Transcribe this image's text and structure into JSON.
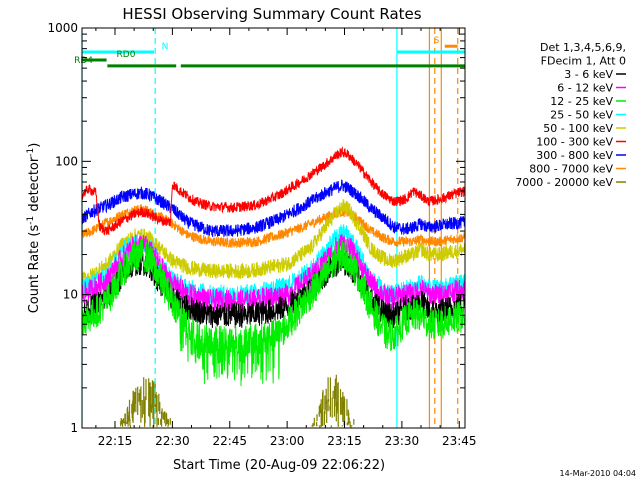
{
  "chart_data": {
    "type": "line",
    "title": "HESSI Observing Summary Count Rates",
    "xlabel": "Start Time (20-Aug-09 22:06:22)",
    "ylabel_main": "Count Rate (s",
    "ylabel_sup1": "-1",
    "ylabel_mid": " detector",
    "ylabel_sup2": "-1",
    "ylabel_end": ")",
    "yscale": "log",
    "ylim": [
      1,
      1000
    ],
    "xlim_minutes": [
      6.37,
      106.5
    ],
    "xticks": [
      {
        "label": "22:15",
        "min": 15
      },
      {
        "label": "22:30",
        "min": 30
      },
      {
        "label": "22:45",
        "min": 45
      },
      {
        "label": "23:00",
        "min": 60
      },
      {
        "label": "23:15",
        "min": 75
      },
      {
        "label": "23:30",
        "min": 90
      },
      {
        "label": "23:45",
        "min": 105
      }
    ],
    "yticks": [
      {
        "label": "1",
        "v": 1
      },
      {
        "label": "10",
        "v": 10
      },
      {
        "label": "100",
        "v": 100
      },
      {
        "label": "1000",
        "v": 1000
      }
    ],
    "legend_header": [
      "Det 1,3,4,5,6,9,",
      "FDecim 1, Att 0"
    ],
    "timestamp": "14-Mar-2010 04:04",
    "grid": false,
    "legend_position": "right",
    "series": [
      {
        "name": "3 - 6 keV",
        "color": "#000000",
        "noise": 0.1,
        "pts": [
          [
            6.4,
            7
          ],
          [
            9,
            8
          ],
          [
            13,
            9.5
          ],
          [
            17,
            14
          ],
          [
            20,
            17
          ],
          [
            22,
            17.5
          ],
          [
            24,
            16.5
          ],
          [
            27,
            12
          ],
          [
            30,
            9.3
          ],
          [
            34,
            8
          ],
          [
            40,
            7
          ],
          [
            50,
            7
          ],
          [
            60,
            8
          ],
          [
            66,
            11
          ],
          [
            70,
            14
          ],
          [
            73,
            17
          ],
          [
            74.5,
            17.5
          ],
          [
            76,
            17
          ],
          [
            79,
            13
          ],
          [
            82,
            9
          ],
          [
            86,
            7
          ],
          [
            88,
            7
          ],
          [
            91,
            8
          ],
          [
            93,
            8
          ],
          [
            95,
            9
          ],
          [
            97,
            7.5
          ],
          [
            100,
            7.5
          ],
          [
            103,
            8
          ],
          [
            106.5,
            8.5
          ]
        ]
      },
      {
        "name": "6 - 12 keV",
        "color": "#ff00ff",
        "noise": 0.09,
        "pts": [
          [
            6.4,
            10
          ],
          [
            9,
            11
          ],
          [
            13,
            13
          ],
          [
            17,
            19
          ],
          [
            20,
            23
          ],
          [
            22,
            24
          ],
          [
            24,
            22
          ],
          [
            27,
            16
          ],
          [
            30,
            12
          ],
          [
            34,
            10
          ],
          [
            40,
            9
          ],
          [
            50,
            9
          ],
          [
            60,
            10
          ],
          [
            66,
            13.5
          ],
          [
            70,
            18
          ],
          [
            73,
            23
          ],
          [
            74.5,
            24
          ],
          [
            76,
            23
          ],
          [
            79,
            17
          ],
          [
            82,
            12
          ],
          [
            86,
            9.5
          ],
          [
            88,
            9.5
          ],
          [
            91,
            10
          ],
          [
            93,
            10
          ],
          [
            95,
            11
          ],
          [
            97,
            10
          ],
          [
            100,
            10
          ],
          [
            103,
            10.5
          ],
          [
            106.5,
            11
          ]
        ]
      },
      {
        "name": "12 - 25 keV",
        "color": "#00ee00",
        "noise": 0.13,
        "pts": [
          [
            6.4,
            6.5
          ],
          [
            9,
            7
          ],
          [
            13,
            9
          ],
          [
            17,
            15
          ],
          [
            20,
            19
          ],
          [
            22,
            20
          ],
          [
            24,
            18.5
          ],
          [
            27,
            13
          ],
          [
            30,
            9
          ],
          [
            33,
            6.5
          ],
          [
            36,
            5
          ],
          [
            40,
            4.5
          ],
          [
            50,
            4.5
          ],
          [
            58,
            5
          ],
          [
            62,
            7
          ],
          [
            66,
            10
          ],
          [
            70,
            14
          ],
          [
            73,
            19
          ],
          [
            74.5,
            20
          ],
          [
            76,
            19
          ],
          [
            79,
            13
          ],
          [
            82,
            8
          ],
          [
            86,
            5
          ],
          [
            88,
            5
          ],
          [
            91,
            6.5
          ],
          [
            93,
            7
          ],
          [
            95,
            7
          ],
          [
            97,
            6
          ],
          [
            100,
            6
          ],
          [
            103,
            6.5
          ],
          [
            106.5,
            7
          ]
        ]
      },
      {
        "name": "25 - 50 keV",
        "color": "#00ffff",
        "noise": 0.08,
        "pts": [
          [
            6.4,
            11
          ],
          [
            9,
            12
          ],
          [
            13,
            14
          ],
          [
            17,
            21
          ],
          [
            20,
            24
          ],
          [
            22,
            25
          ],
          [
            24,
            23
          ],
          [
            27,
            17
          ],
          [
            30,
            13
          ],
          [
            34,
            11
          ],
          [
            40,
            10
          ],
          [
            50,
            10
          ],
          [
            60,
            11.5
          ],
          [
            66,
            15
          ],
          [
            70,
            21
          ],
          [
            73,
            27
          ],
          [
            74.5,
            29
          ],
          [
            76,
            28
          ],
          [
            79,
            20
          ],
          [
            82,
            13
          ],
          [
            86,
            10
          ],
          [
            88,
            10
          ],
          [
            91,
            11
          ],
          [
            93,
            11
          ],
          [
            95,
            12
          ],
          [
            97,
            11
          ],
          [
            100,
            11
          ],
          [
            103,
            11.5
          ],
          [
            106.5,
            12.5
          ]
        ]
      },
      {
        "name": "50 - 100 keV",
        "color": "#cccc00",
        "noise": 0.06,
        "pts": [
          [
            6.4,
            13
          ],
          [
            9,
            14
          ],
          [
            13,
            17
          ],
          [
            17,
            24
          ],
          [
            20,
            27.5
          ],
          [
            22,
            28
          ],
          [
            24,
            26.5
          ],
          [
            27,
            22
          ],
          [
            30,
            18
          ],
          [
            34,
            16
          ],
          [
            40,
            15
          ],
          [
            50,
            15
          ],
          [
            60,
            17
          ],
          [
            66,
            22
          ],
          [
            70,
            32
          ],
          [
            73,
            42
          ],
          [
            74.5,
            46
          ],
          [
            76,
            44
          ],
          [
            79,
            32
          ],
          [
            82,
            22
          ],
          [
            86,
            18
          ],
          [
            88,
            18
          ],
          [
            91,
            19.5
          ],
          [
            93,
            20
          ],
          [
            95,
            22
          ],
          [
            97,
            20
          ],
          [
            100,
            20
          ],
          [
            103,
            21
          ],
          [
            106.5,
            22
          ]
        ]
      },
      {
        "name": "100 - 300 keV",
        "color": "#ff0000",
        "noise": 0.04,
        "pts": [
          [
            6.4,
            56
          ],
          [
            8,
            62
          ],
          [
            10,
            58
          ],
          [
            11,
            32
          ],
          [
            13,
            30
          ],
          [
            17,
            36
          ],
          [
            20,
            40
          ],
          [
            22,
            42
          ],
          [
            24,
            40
          ],
          [
            27,
            36
          ],
          [
            29.5,
            35
          ],
          [
            30,
            68
          ],
          [
            32,
            60
          ],
          [
            36,
            50
          ],
          [
            40,
            46
          ],
          [
            46,
            45
          ],
          [
            52,
            47
          ],
          [
            58,
            56
          ],
          [
            64,
            72
          ],
          [
            70,
            95
          ],
          [
            73,
            112
          ],
          [
            74.5,
            117
          ],
          [
            76,
            112
          ],
          [
            79,
            90
          ],
          [
            82,
            70
          ],
          [
            84,
            60
          ],
          [
            86,
            54
          ],
          [
            88,
            50
          ],
          [
            91,
            52
          ],
          [
            93,
            60
          ],
          [
            95,
            55
          ],
          [
            97,
            50
          ],
          [
            100,
            52
          ],
          [
            103,
            56
          ],
          [
            106.5,
            60
          ]
        ]
      },
      {
        "name": "300 - 800 keV",
        "color": "#0000ff",
        "noise": 0.05,
        "pts": [
          [
            6.4,
            37
          ],
          [
            9,
            42
          ],
          [
            13,
            47
          ],
          [
            17,
            54
          ],
          [
            20,
            57
          ],
          [
            22,
            58
          ],
          [
            24,
            56
          ],
          [
            27,
            50
          ],
          [
            30,
            44
          ],
          [
            34,
            35
          ],
          [
            40,
            30
          ],
          [
            46,
            30
          ],
          [
            52,
            32
          ],
          [
            58,
            37
          ],
          [
            64,
            46
          ],
          [
            70,
            58
          ],
          [
            73,
            64
          ],
          [
            74.5,
            66
          ],
          [
            76,
            63
          ],
          [
            79,
            54
          ],
          [
            82,
            44
          ],
          [
            86,
            36
          ],
          [
            88,
            32
          ],
          [
            91,
            31
          ],
          [
            93,
            32
          ],
          [
            95,
            34
          ],
          [
            97,
            32
          ],
          [
            100,
            33
          ],
          [
            103,
            34
          ],
          [
            106.5,
            35
          ]
        ]
      },
      {
        "name": "800 - 7000 keV",
        "color": "#ff8800",
        "noise": 0.04,
        "pts": [
          [
            6.4,
            28
          ],
          [
            9,
            30
          ],
          [
            13,
            35
          ],
          [
            17,
            40
          ],
          [
            20,
            43
          ],
          [
            22,
            44
          ],
          [
            24,
            42
          ],
          [
            27,
            38
          ],
          [
            30,
            34
          ],
          [
            34,
            28
          ],
          [
            40,
            25
          ],
          [
            46,
            24.5
          ],
          [
            52,
            25
          ],
          [
            58,
            28
          ],
          [
            64,
            32
          ],
          [
            70,
            38
          ],
          [
            73,
            41
          ],
          [
            74.5,
            42
          ],
          [
            76,
            41
          ],
          [
            79,
            36
          ],
          [
            82,
            30
          ],
          [
            86,
            26
          ],
          [
            88,
            25
          ],
          [
            91,
            25
          ],
          [
            93,
            25
          ],
          [
            95,
            26
          ],
          [
            97,
            25
          ],
          [
            100,
            25
          ],
          [
            103,
            26
          ],
          [
            106.5,
            27
          ]
        ]
      },
      {
        "name": "7000 - 20000 keV",
        "color": "#808000",
        "noise": 0,
        "pts": []
      }
    ],
    "olive_bursts": [
      [
        16.5,
        29.5
      ],
      [
        66.5,
        77.5
      ]
    ],
    "vlines": [
      {
        "min": 6.37,
        "color": "#00ffff",
        "dash": false
      },
      {
        "min": 25.5,
        "color": "#00ffff",
        "dash": true
      },
      {
        "min": 88.7,
        "color": "#00ffff",
        "dash": false
      },
      {
        "min": 97.2,
        "color": "#ff8800",
        "dash": false
      },
      {
        "min": 98.6,
        "color": "#ff8800",
        "dash": true
      },
      {
        "min": 100.3,
        "color": "#ff8800",
        "dash": false
      },
      {
        "min": 104.6,
        "color": "#ff8800",
        "dash": true
      }
    ],
    "flags": [
      {
        "label": "N",
        "color": "#00ffff",
        "y": 660,
        "segs": [
          [
            6.37,
            25.2
          ],
          [
            88.7,
            106.5
          ]
        ],
        "label_min": 27.2
      },
      {
        "label": "S",
        "color": "#ff8800",
        "y": 730,
        "segs": [
          [
            101.2,
            104.6
          ]
        ],
        "label_min": 98.3
      },
      {
        "label": "RD0",
        "color": "#008000",
        "y": 575,
        "segs": [
          [
            6.37,
            12.8
          ]
        ],
        "label_min": 15.4
      },
      {
        "label": "RD4",
        "color": "#008000",
        "y": 520,
        "segs": [
          [
            13,
            31
          ],
          [
            32.2,
            106.5
          ]
        ],
        "label_min": 4.3
      }
    ]
  }
}
